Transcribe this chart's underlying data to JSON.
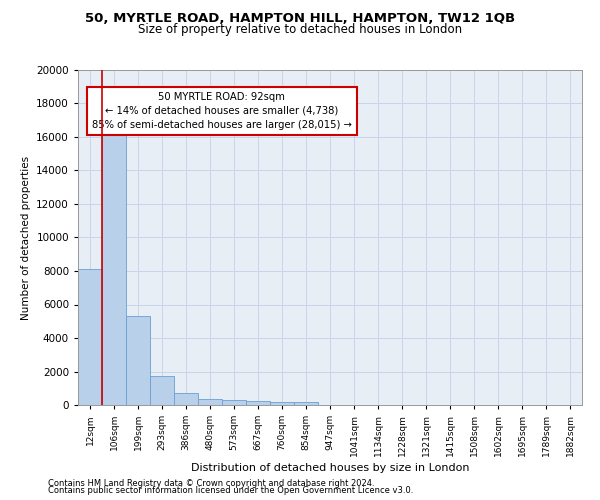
{
  "title_line1": "50, MYRTLE ROAD, HAMPTON HILL, HAMPTON, TW12 1QB",
  "title_line2": "Size of property relative to detached houses in London",
  "xlabel": "Distribution of detached houses by size in London",
  "ylabel": "Number of detached properties",
  "bar_labels": [
    "12sqm",
    "106sqm",
    "199sqm",
    "293sqm",
    "386sqm",
    "480sqm",
    "573sqm",
    "667sqm",
    "760sqm",
    "854sqm",
    "947sqm",
    "1041sqm",
    "1134sqm",
    "1228sqm",
    "1321sqm",
    "1415sqm",
    "1508sqm",
    "1602sqm",
    "1695sqm",
    "1789sqm",
    "1882sqm"
  ],
  "bar_values": [
    8100,
    16700,
    5300,
    1750,
    700,
    370,
    280,
    210,
    180,
    200,
    0,
    0,
    0,
    0,
    0,
    0,
    0,
    0,
    0,
    0,
    0
  ],
  "bar_color": "#b8d0ea",
  "bar_edge_color": "#6a9fd4",
  "ylim": [
    0,
    20000
  ],
  "yticks": [
    0,
    2000,
    4000,
    6000,
    8000,
    10000,
    12000,
    14000,
    16000,
    18000,
    20000
  ],
  "annotation_title": "50 MYRTLE ROAD: 92sqm",
  "annotation_line1": "← 14% of detached houses are smaller (4,738)",
  "annotation_line2": "85% of semi-detached houses are larger (28,015) →",
  "vline_x": 0.5,
  "vline_color": "#cc0000",
  "annotation_box_color": "#ffffff",
  "annotation_box_edge": "#cc0000",
  "grid_color": "#c8d4e8",
  "bg_color": "#e8eef5",
  "footnote1": "Contains HM Land Registry data © Crown copyright and database right 2024.",
  "footnote2": "Contains public sector information licensed under the Open Government Licence v3.0."
}
